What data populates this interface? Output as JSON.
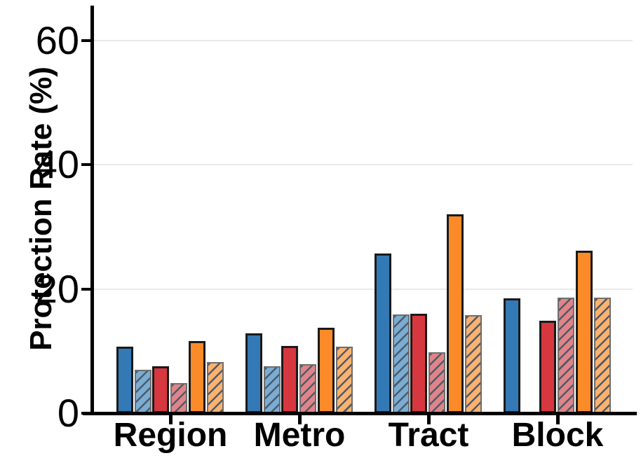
{
  "chart_data": {
    "type": "bar",
    "title": "",
    "xlabel": "",
    "ylabel": "Protection Rate (%)",
    "categories": [
      "Region",
      "Metro",
      "Tract",
      "Block"
    ],
    "yticks": [
      0,
      20,
      40,
      60
    ],
    "ylim": [
      0,
      65.4
    ],
    "grid": "horizontal-light-gray-at-20-40-60",
    "legend": "none",
    "series": [
      {
        "name": "blue-solid",
        "style": "solid",
        "fill": "#3379b5",
        "edge": "#1a1a1a",
        "values": [
          10.7,
          12.9,
          25.7,
          18.5
        ]
      },
      {
        "name": "blue-hatched",
        "style": "hatched",
        "fill": "#79add4",
        "edge": "#6e6e6e",
        "values": [
          7.0,
          7.6,
          15.9,
          0
        ]
      },
      {
        "name": "red-solid",
        "style": "solid",
        "fill": "#d7383f",
        "edge": "#1a1a1a",
        "values": [
          7.5,
          10.8,
          16.0,
          14.9
        ]
      },
      {
        "name": "red-hatched",
        "style": "hatched",
        "fill": "#e08489",
        "edge": "#6e6e6e",
        "values": [
          4.9,
          7.9,
          9.8,
          18.6
        ]
      },
      {
        "name": "orange-solid",
        "style": "solid",
        "fill": "#fb8b28",
        "edge": "#1a1a1a",
        "values": [
          11.6,
          13.7,
          32.0,
          26.1
        ]
      },
      {
        "name": "orange-hatched",
        "style": "hatched",
        "fill": "#fcb26e",
        "edge": "#6e6e6e",
        "values": [
          8.2,
          10.7,
          15.8,
          18.6
        ]
      }
    ],
    "colors": {
      "grid": "#e9e9e9",
      "axis": "#000000",
      "hatch_line": "#4f5a68",
      "background": "#ffffff"
    }
  }
}
